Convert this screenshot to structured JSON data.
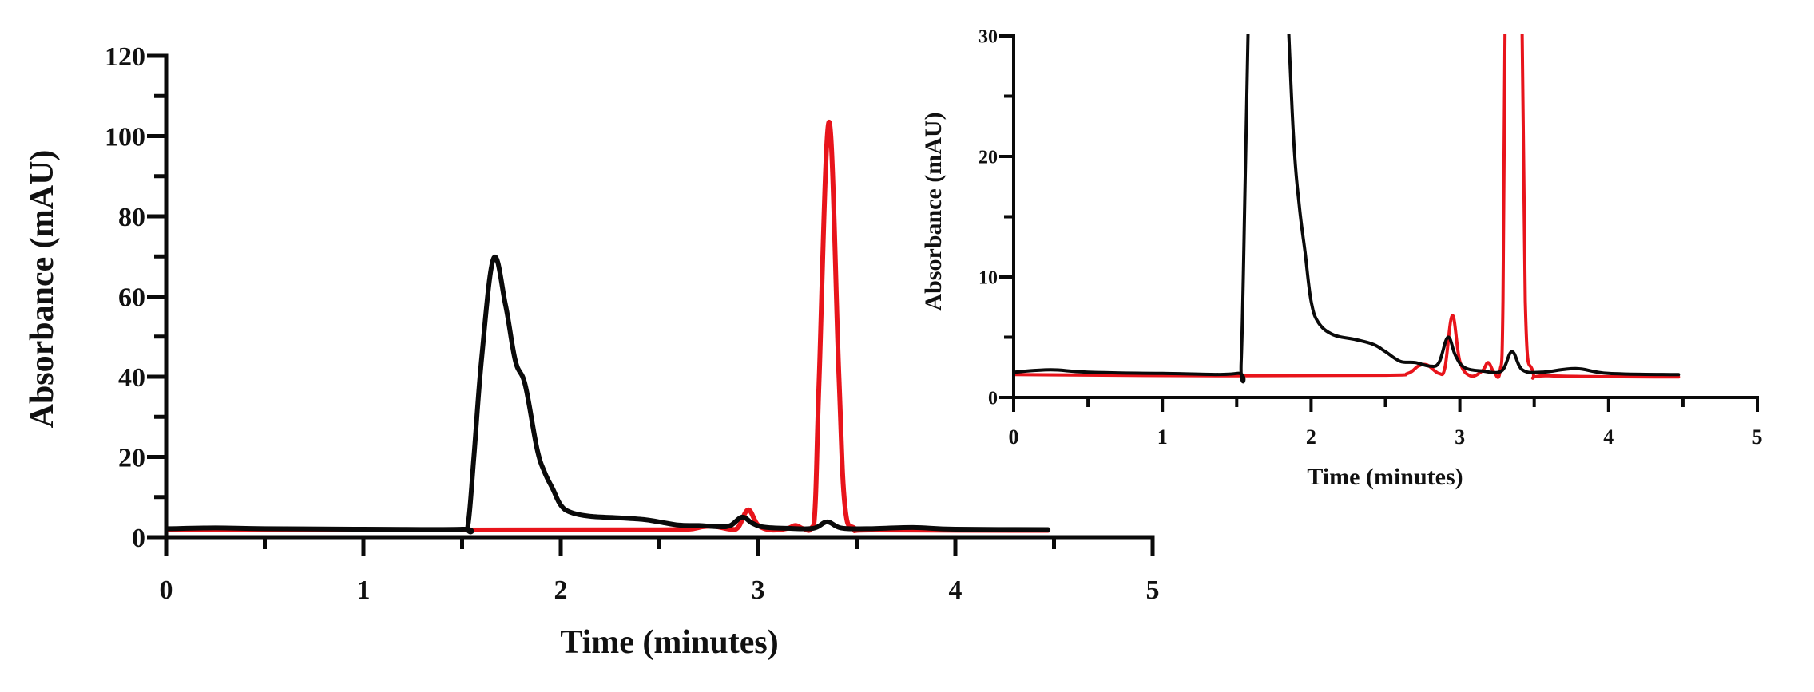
{
  "colors": {
    "black_trace": "#0a0a0a",
    "red_trace": "#e8141b",
    "axis": "#0a0a0a"
  },
  "chart_data": [
    {
      "id": "main",
      "type": "line",
      "title": "",
      "xlabel": "Time (minutes)",
      "ylabel": "Absorbance (mAU)",
      "xlim": [
        0,
        5
      ],
      "ylim": [
        0,
        120
      ],
      "x_ticks": [
        0,
        1,
        2,
        3,
        4,
        5
      ],
      "x_tick_labels": [
        "0",
        "1",
        "2",
        "3",
        "4",
        "5"
      ],
      "y_ticks": [
        0,
        20,
        40,
        60,
        80,
        100,
        120
      ],
      "y_tick_labels": [
        "0",
        "20",
        "40",
        "60",
        "80",
        "100",
        "120"
      ],
      "grid": false,
      "legend": null,
      "series": [
        {
          "name": "black trace",
          "color": "#0a0a0a",
          "x": [
            0,
            0.25,
            0.5,
            1.0,
            1.5,
            1.53,
            1.56,
            1.6,
            1.66,
            1.72,
            1.77,
            1.82,
            1.88,
            1.92,
            1.96,
            2.0,
            2.05,
            2.15,
            2.3,
            2.42,
            2.5,
            2.6,
            2.7,
            2.8,
            2.86,
            2.92,
            2.97,
            3.03,
            3.15,
            3.28,
            3.35,
            3.42,
            3.55,
            3.78,
            4.0,
            4.47
          ],
          "y": [
            2.1,
            2.3,
            2.1,
            2.0,
            2.0,
            3,
            20,
            45,
            69.5,
            58,
            44,
            38,
            22,
            16,
            12,
            8,
            6.2,
            5.2,
            4.8,
            4.4,
            3.8,
            3.0,
            2.9,
            2.6,
            2.9,
            5.0,
            3.5,
            2.5,
            2.2,
            2.2,
            3.8,
            2.3,
            2.1,
            2.4,
            2.0,
            1.9
          ]
        },
        {
          "name": "red trace",
          "color": "#e8141b",
          "x": [
            0,
            1.5,
            2.5,
            2.65,
            2.72,
            2.78,
            2.86,
            2.9,
            2.95,
            3.0,
            3.07,
            3.15,
            3.19,
            3.23,
            3.27,
            3.29,
            3.31,
            3.36,
            3.41,
            3.44,
            3.49,
            3.6,
            4.47
          ],
          "y": [
            1.9,
            1.8,
            1.85,
            2.0,
            2.6,
            2.7,
            2.0,
            2.5,
            6.8,
            3.0,
            1.8,
            2.2,
            2.9,
            2.1,
            2.2,
            8,
            40,
            103.5,
            40,
            8,
            2.2,
            1.8,
            1.7
          ]
        }
      ]
    },
    {
      "id": "inset",
      "type": "line",
      "title": "",
      "xlabel": "Time (minutes)",
      "ylabel": "Absorbance (mAU)",
      "xlim": [
        0,
        5
      ],
      "ylim": [
        0,
        30
      ],
      "x_ticks": [
        0,
        1,
        2,
        3,
        4,
        5
      ],
      "x_tick_labels": [
        "0",
        "1",
        "2",
        "3",
        "4",
        "5"
      ],
      "y_ticks": [
        0,
        10,
        20,
        30
      ],
      "y_tick_labels": [
        "0",
        "10",
        "20",
        "30"
      ],
      "grid": false,
      "legend": null,
      "note": "zoomed view of same traces, clipped at 30 mAU",
      "series_ref": "main"
    }
  ]
}
